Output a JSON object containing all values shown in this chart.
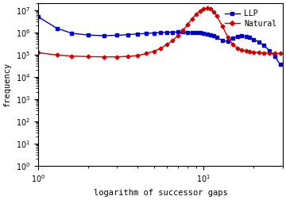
{
  "xlabel": "logarithm of successor gaps",
  "ylabel": "frequency",
  "xlim": [
    1.0,
    30.0
  ],
  "ylim": [
    1.0,
    20000000.0
  ],
  "blue_label": "LLP",
  "red_label": "Natural",
  "blue_color": "#0000cc",
  "red_color": "#cc0000",
  "blue_x": [
    1.0,
    1.3,
    1.6,
    2.0,
    2.5,
    3.0,
    3.5,
    4.0,
    4.5,
    5.0,
    5.5,
    6.0,
    6.5,
    7.0,
    7.5,
    8.0,
    8.5,
    9.0,
    9.5,
    10.0,
    10.5,
    11.0,
    11.5,
    12.0,
    13.0,
    14.0,
    15.0,
    16.0,
    17.0,
    18.0,
    19.0,
    20.0,
    21.5,
    23.0,
    25.0,
    27.0,
    29.0
  ],
  "blue_y": [
    5000000,
    1500000,
    900000,
    750000,
    700000,
    730000,
    780000,
    840000,
    890000,
    930000,
    960000,
    990000,
    1010000,
    1020000,
    1020000,
    1010000,
    990000,
    970000,
    940000,
    900000,
    840000,
    760000,
    680000,
    580000,
    430000,
    380000,
    550000,
    650000,
    700000,
    650000,
    580000,
    480000,
    370000,
    260000,
    150000,
    80000,
    35000
  ],
  "red_x": [
    1.0,
    1.3,
    1.6,
    2.0,
    2.5,
    3.0,
    3.5,
    4.0,
    4.5,
    5.0,
    5.5,
    6.0,
    6.5,
    7.0,
    7.5,
    8.0,
    8.5,
    9.0,
    9.5,
    10.0,
    10.5,
    11.0,
    11.5,
    12.0,
    13.0,
    14.0,
    15.0,
    16.0,
    17.0,
    18.0,
    19.0,
    20.0,
    21.5,
    23.0,
    25.0,
    27.0,
    29.0
  ],
  "red_y": [
    120000,
    95000,
    85000,
    80000,
    78000,
    78000,
    82000,
    90000,
    110000,
    140000,
    190000,
    280000,
    430000,
    700000,
    1200000,
    2200000,
    4000000,
    6500000,
    9000000,
    11000000,
    12000000,
    11000000,
    8500000,
    5500000,
    1800000,
    600000,
    280000,
    190000,
    160000,
    145000,
    135000,
    128000,
    122000,
    118000,
    115000,
    112000,
    110000
  ]
}
